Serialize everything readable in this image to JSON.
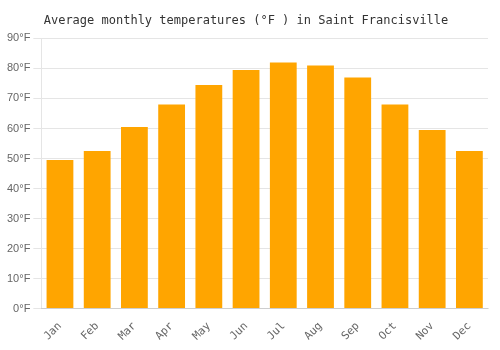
{
  "chart_data": {
    "type": "bar",
    "title": "Average monthly temperatures (°F ) in Saint Francisville",
    "categories": [
      "Jan",
      "Feb",
      "Mar",
      "Apr",
      "May",
      "Jun",
      "Jul",
      "Aug",
      "Sep",
      "Oct",
      "Nov",
      "Dec"
    ],
    "values": [
      49.5,
      52.5,
      60.5,
      68,
      74.5,
      79.5,
      82,
      81,
      77,
      68,
      59.5,
      52.5
    ],
    "color": "#FFA500",
    "ylim": [
      0,
      90
    ],
    "yticks": [
      {
        "value": 0,
        "label": "0°F"
      },
      {
        "value": 10,
        "label": "10°F"
      },
      {
        "value": 20,
        "label": "20°F"
      },
      {
        "value": 30,
        "label": "30°F"
      },
      {
        "value": 40,
        "label": "40°F"
      },
      {
        "value": 50,
        "label": "50°F"
      },
      {
        "value": 60,
        "label": "60°F"
      },
      {
        "value": 70,
        "label": "70°F"
      },
      {
        "value": 80,
        "label": "80°F"
      },
      {
        "value": 90,
        "label": "90°F"
      }
    ],
    "grid": true
  }
}
